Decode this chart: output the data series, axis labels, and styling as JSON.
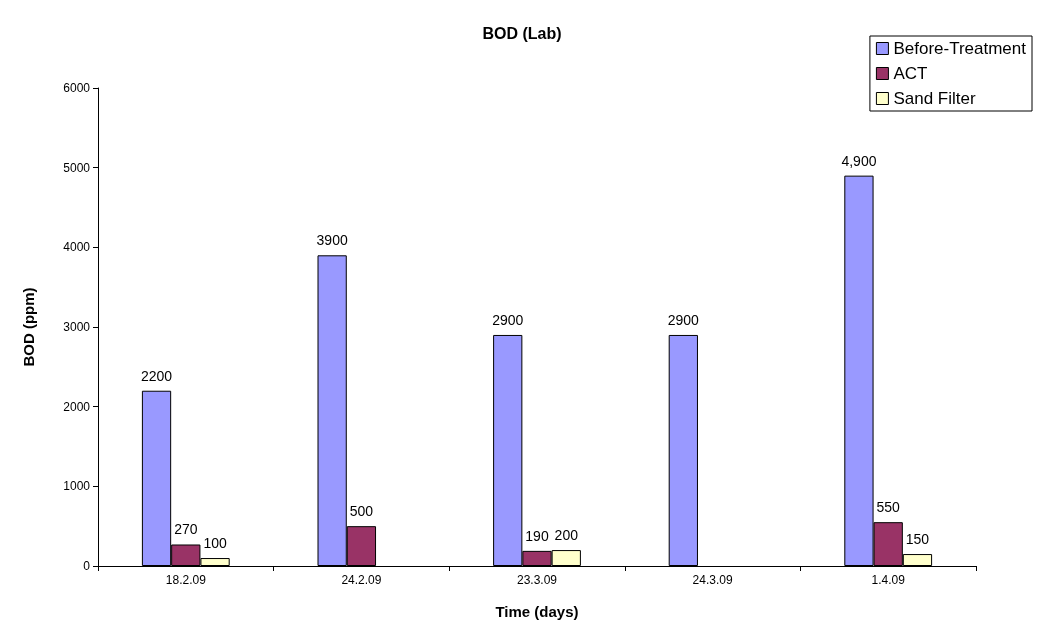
{
  "chart_data": {
    "type": "bar",
    "title": "BOD (Lab)",
    "xlabel": "Time (days)",
    "ylabel": "BOD (ppm)",
    "categories": [
      "18.2.09",
      "24.2.09",
      "23.3.09",
      "24.3.09",
      "1.4.09"
    ],
    "series": [
      {
        "name": "Before-Treatment",
        "color": "#9999ff",
        "values": [
          2200,
          3900,
          2900,
          2900,
          4900
        ],
        "value_labels": [
          "2200",
          "3900",
          "2900",
          "2900",
          "4,900"
        ]
      },
      {
        "name": "ACT",
        "color": "#993366",
        "values": [
          270,
          500,
          190,
          null,
          550
        ],
        "value_labels": [
          "270",
          "500",
          "190",
          null,
          "550"
        ]
      },
      {
        "name": "Sand Filter",
        "color": "#ffffcc",
        "values": [
          100,
          null,
          200,
          null,
          150
        ],
        "value_labels": [
          "100",
          null,
          "200",
          null,
          "150"
        ]
      }
    ],
    "ylim": [
      0,
      6000
    ],
    "yticks": [
      0,
      1000,
      2000,
      3000,
      4000,
      5000,
      6000
    ],
    "grid": false,
    "legend": "top right"
  }
}
